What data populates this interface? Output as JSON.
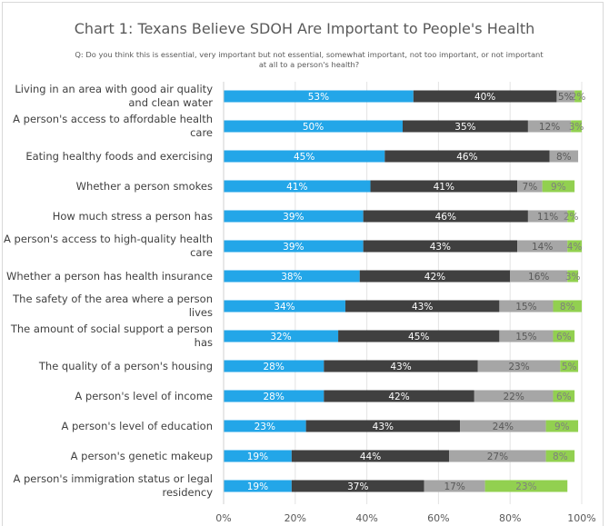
{
  "chart_data": {
    "type": "bar",
    "orientation": "horizontal",
    "stacked": true,
    "title": "Chart 1: Texans Believe SDOH Are Important to People's Health",
    "subtitle": "Q: Do you think this is essential, very important but not essential, somewhat important, not too important, or not important at all to a person's health?",
    "categories": [
      "Living in an area with good air quality and clean water",
      "A person's access to affordable health care",
      "Eating healthy foods and exercising",
      "Whether a person smokes",
      "How much stress a person has",
      "A person's access to high-quality health care",
      "Whether a person has health insurance",
      "The safety of the area where a person lives",
      "The amount of social support a person has",
      "The quality of a person's housing",
      "A person's level of income",
      "A person's level of education",
      "A person's genetic makeup",
      "A person's immigration status or legal residency"
    ],
    "series": [
      {
        "color": "#23a6e8",
        "label_color": "#ffffff",
        "values": [
          53,
          50,
          45,
          41,
          39,
          39,
          38,
          34,
          32,
          28,
          28,
          23,
          19,
          19
        ]
      },
      {
        "color": "#404040",
        "label_color": "#ffffff",
        "values": [
          40,
          35,
          46,
          41,
          46,
          43,
          42,
          43,
          45,
          43,
          42,
          43,
          44,
          37
        ]
      },
      {
        "color": "#a6a6a6",
        "label_color": "#595959",
        "values": [
          5,
          12,
          8,
          7,
          11,
          14,
          16,
          15,
          15,
          23,
          22,
          24,
          27,
          17
        ]
      },
      {
        "color": "#92d050",
        "label_color": "#7f7f7f",
        "values": [
          2,
          3,
          null,
          9,
          2,
          4,
          3,
          8,
          6,
          5,
          6,
          9,
          8,
          23
        ]
      }
    ],
    "xlim": [
      0,
      100
    ],
    "xticks": [
      "0%",
      "20%",
      "40%",
      "60%",
      "80%",
      "100%"
    ],
    "grid": true,
    "legend": "none"
  }
}
